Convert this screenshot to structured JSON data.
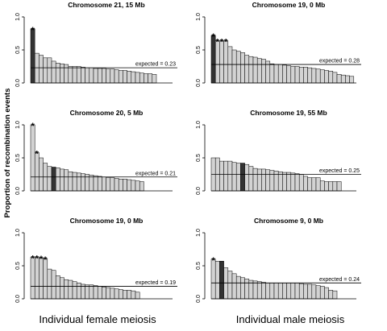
{
  "ylabel": "Proportion of recombination events",
  "xlabels": [
    "Individual female meiosis",
    "Individual male meiosis"
  ],
  "chart_data": [
    {
      "type": "bar",
      "title": "Chromosome 21, 15 Mb",
      "ylim": [
        0,
        1
      ],
      "yticks": [
        "0.0",
        "0.5",
        "1.0"
      ],
      "values": [
        0.82,
        0.45,
        0.42,
        0.38,
        0.38,
        0.33,
        0.3,
        0.29,
        0.28,
        0.25,
        0.25,
        0.25,
        0.24,
        0.23,
        0.23,
        0.22,
        0.22,
        0.22,
        0.21,
        0.21,
        0.2,
        0.19,
        0.19,
        0.18,
        0.17,
        0.16,
        0.15,
        0.14,
        0.14,
        0.13
      ],
      "highlight": [
        0
      ],
      "stars": [
        {
          "index": 0,
          "label": "*"
        }
      ],
      "expected": 0.23,
      "expected_label": "expected = 0.23",
      "colors": {
        "bar": "#d3d3d3",
        "highlight": "#333333"
      }
    },
    {
      "type": "bar",
      "title": "Chromosome 19, 0 Mb",
      "ylim": [
        0,
        1
      ],
      "yticks": [
        "0.0",
        "0.5",
        "1.0"
      ],
      "values": [
        0.72,
        0.64,
        0.64,
        0.64,
        0.55,
        0.5,
        0.48,
        0.46,
        0.42,
        0.4,
        0.39,
        0.37,
        0.36,
        0.33,
        0.29,
        0.28,
        0.28,
        0.27,
        0.26,
        0.25,
        0.25,
        0.24,
        0.24,
        0.23,
        0.22,
        0.21,
        0.2,
        0.19,
        0.18,
        0.16,
        0.13,
        0.12,
        0.11,
        0.1
      ],
      "highlight": [
        0
      ],
      "stars": [
        {
          "index": 0,
          "label": "*"
        },
        {
          "index": 1,
          "label": "*"
        },
        {
          "index": 2,
          "label": "*"
        },
        {
          "index": 3,
          "label": "*"
        }
      ],
      "expected": 0.28,
      "expected_label": "expected = 0.28",
      "colors": {
        "bar": "#d3d3d3",
        "highlight": "#333333"
      }
    },
    {
      "type": "bar",
      "title": "Chromosome 20, 5 Mb",
      "ylim": [
        0,
        1
      ],
      "yticks": [
        "0.0",
        "0.5",
        "1.0"
      ],
      "values": [
        1.0,
        0.58,
        0.5,
        0.42,
        0.37,
        0.36,
        0.35,
        0.33,
        0.32,
        0.29,
        0.28,
        0.27,
        0.26,
        0.25,
        0.24,
        0.23,
        0.22,
        0.21,
        0.2,
        0.2,
        0.19,
        0.18,
        0.18,
        0.17,
        0.16,
        0.15,
        0.14
      ],
      "highlight": [
        5
      ],
      "stars": [
        {
          "index": 0,
          "label": "*"
        },
        {
          "index": 1,
          "label": "*"
        }
      ],
      "expected": 0.21,
      "expected_label": "expected = 0.21",
      "colors": {
        "bar": "#d3d3d3",
        "highlight": "#333333"
      }
    },
    {
      "type": "bar",
      "title": "Chromosome 19, 55 Mb",
      "ylim": [
        0,
        1
      ],
      "yticks": [
        "0.0",
        "0.5",
        "1.0"
      ],
      "values": [
        0.5,
        0.5,
        0.45,
        0.45,
        0.45,
        0.43,
        0.42,
        0.42,
        0.4,
        0.37,
        0.34,
        0.33,
        0.33,
        0.32,
        0.31,
        0.3,
        0.29,
        0.28,
        0.28,
        0.27,
        0.26,
        0.25,
        0.22,
        0.2,
        0.2,
        0.2,
        0.15,
        0.14,
        0.14,
        0.14,
        0.14
      ],
      "highlight": [
        7
      ],
      "stars": [],
      "expected": 0.25,
      "expected_label": "expected = 0.25",
      "colors": {
        "bar": "#d3d3d3",
        "highlight": "#333333"
      }
    },
    {
      "type": "bar",
      "title": "Chromosome 19, 0 Mb",
      "ylim": [
        0,
        1
      ],
      "yticks": [
        "0.0",
        "0.5",
        "1.0"
      ],
      "values": [
        0.63,
        0.63,
        0.62,
        0.61,
        0.45,
        0.43,
        0.35,
        0.32,
        0.29,
        0.28,
        0.26,
        0.24,
        0.22,
        0.21,
        0.21,
        0.2,
        0.19,
        0.18,
        0.17,
        0.16,
        0.15,
        0.14,
        0.13,
        0.13,
        0.12,
        0.1
      ],
      "highlight": [],
      "stars": [
        {
          "index": 0,
          "label": "*"
        },
        {
          "index": 1,
          "label": "*"
        },
        {
          "index": 2,
          "label": "*"
        },
        {
          "index": 3,
          "label": "*"
        }
      ],
      "expected": 0.19,
      "expected_label": "expected = 0.19",
      "colors": {
        "bar": "#d3d3d3",
        "highlight": "#333333"
      }
    },
    {
      "type": "bar",
      "title": "Chromosome 9, 0 Mb",
      "ylim": [
        0,
        1
      ],
      "yticks": [
        "0.0",
        "0.5",
        "1.0"
      ],
      "values": [
        0.6,
        0.57,
        0.57,
        0.47,
        0.42,
        0.38,
        0.34,
        0.32,
        0.3,
        0.28,
        0.27,
        0.26,
        0.25,
        0.24,
        0.24,
        0.24,
        0.24,
        0.24,
        0.24,
        0.24,
        0.24,
        0.23,
        0.22,
        0.22,
        0.21,
        0.2,
        0.19,
        0.17,
        0.13,
        0.12
      ],
      "highlight": [
        2
      ],
      "stars": [
        {
          "index": 0,
          "label": "*"
        }
      ],
      "expected": 0.24,
      "expected_label": "expected = 0.24",
      "colors": {
        "bar": "#d3d3d3",
        "highlight": "#333333"
      }
    }
  ]
}
